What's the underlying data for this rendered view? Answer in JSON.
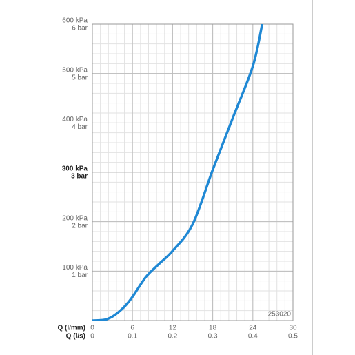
{
  "chart_data": {
    "type": "line",
    "x_label": "Q (l/min)",
    "x2_label": "Q (l/s)",
    "annotation": "253020",
    "series": [
      {
        "color": "#1f88d4",
        "x": [
          0,
          1,
          2,
          3,
          4,
          5,
          6,
          8,
          10,
          12,
          15,
          18,
          21,
          24,
          25.4
        ],
        "values": [
          0,
          0.5,
          2,
          8,
          18,
          31,
          48,
          88,
          115,
          141,
          195,
          305,
          410,
          515,
          600
        ]
      }
    ],
    "xlim": [
      0,
      30
    ],
    "xticks": [
      0,
      6,
      12,
      18,
      24,
      30
    ],
    "x2lim": [
      0,
      0.5
    ],
    "x2ticks": [
      0,
      0.1,
      0.2,
      0.3,
      0.4,
      0.5
    ],
    "ylim": [
      0,
      600
    ],
    "yticks": [
      {
        "value": 100,
        "label": "100 kPa"
      },
      {
        "value": 200,
        "label": "200 kPa"
      },
      {
        "value": 300,
        "label": "300 kPa"
      },
      {
        "value": 400,
        "label": "400 kPa"
      },
      {
        "value": 500,
        "label": "500 kPa"
      },
      {
        "value": 600,
        "label": "600 kPa"
      }
    ],
    "y2lim": [
      0,
      6
    ],
    "y2ticks": [
      {
        "value": 1,
        "label": "1 bar"
      },
      {
        "value": 2,
        "label": "2 bar"
      },
      {
        "value": 3,
        "label": "3 bar"
      },
      {
        "value": 4,
        "label": "4 bar"
      },
      {
        "value": 5,
        "label": "5 bar"
      },
      {
        "value": 6,
        "label": "6 bar"
      }
    ],
    "bold_ytick": 300,
    "grid": true,
    "minor_divisions": 5
  }
}
